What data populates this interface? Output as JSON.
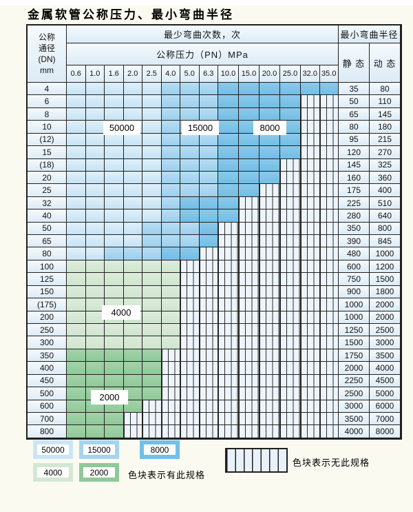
{
  "title": "金属软管公称压力、最小弯曲半径",
  "table": {
    "dn_header": [
      "公称",
      "通径",
      "(DN)",
      "mm"
    ],
    "bend_times_header": "最少弯曲次数，次",
    "pn_header": "公称压力（PN）MPa",
    "bend_radius_header": "最小弯曲半径",
    "static_header": "静 态",
    "dynamic_header": "动 态",
    "pn_columns": [
      "0.6",
      "1.0",
      "1.6",
      "2.0",
      "2.5",
      "4.0",
      "5.0",
      "6.3",
      "10.0",
      "15.0",
      "20.0",
      "25.0",
      "32.0",
      "35.0"
    ],
    "rows": [
      {
        "dn": "4",
        "static": "35",
        "dynamic": "80",
        "spec": {
          "type": "blue",
          "light": 4,
          "mid": 7,
          "end": 13
        }
      },
      {
        "dn": "6",
        "static": "50",
        "dynamic": "110",
        "spec": {
          "type": "blue",
          "light": 4,
          "mid": 7,
          "end": 11
        }
      },
      {
        "dn": "8",
        "static": "65",
        "dynamic": "145",
        "spec": {
          "type": "blue",
          "light": 4,
          "mid": 7,
          "end": 11
        }
      },
      {
        "dn": "10",
        "static": "80",
        "dynamic": "180",
        "spec": {
          "type": "blue",
          "light": 4,
          "mid": 7,
          "end": 11
        }
      },
      {
        "dn": "(12)",
        "static": "95",
        "dynamic": "215",
        "spec": {
          "type": "blue",
          "light": 4,
          "mid": 7,
          "end": 11
        }
      },
      {
        "dn": "15",
        "static": "120",
        "dynamic": "270",
        "spec": {
          "type": "blue",
          "light": 4,
          "mid": 7,
          "end": 11
        }
      },
      {
        "dn": "(18)",
        "static": "145",
        "dynamic": "325",
        "spec": {
          "type": "blue",
          "light": 4,
          "mid": 7,
          "end": 10
        }
      },
      {
        "dn": "20",
        "static": "160",
        "dynamic": "360",
        "spec": {
          "type": "blue",
          "light": 4,
          "mid": 7,
          "end": 10
        }
      },
      {
        "dn": "25",
        "static": "175",
        "dynamic": "400",
        "spec": {
          "type": "blue",
          "light": 4,
          "mid": 7,
          "end": 9
        }
      },
      {
        "dn": "32",
        "static": "225",
        "dynamic": "510",
        "spec": {
          "type": "blue",
          "light": 4,
          "mid": 5,
          "end": 8
        }
      },
      {
        "dn": "40",
        "static": "280",
        "dynamic": "640",
        "spec": {
          "type": "blue",
          "light": 4,
          "mid": 5,
          "end": 8
        }
      },
      {
        "dn": "50",
        "static": "350",
        "dynamic": "800",
        "spec": {
          "type": "blue",
          "light": 3,
          "mid": 6,
          "end": 7
        }
      },
      {
        "dn": "65",
        "static": "390",
        "dynamic": "845",
        "spec": {
          "type": "blue",
          "light": 3,
          "mid": 6,
          "end": 7
        }
      },
      {
        "dn": "80",
        "static": "480",
        "dynamic": "1000",
        "spec": {
          "type": "blue",
          "light": 1,
          "mid": 4,
          "end": 6
        }
      },
      {
        "dn": "100",
        "static": "600",
        "dynamic": "1200",
        "spec": {
          "type": "green4000",
          "end": 5
        }
      },
      {
        "dn": "125",
        "static": "750",
        "dynamic": "1500",
        "spec": {
          "type": "green4000",
          "end": 5
        }
      },
      {
        "dn": "150",
        "static": "900",
        "dynamic": "1800",
        "spec": {
          "type": "green4000",
          "end": 5
        }
      },
      {
        "dn": "(175)",
        "static": "1000",
        "dynamic": "2000",
        "spec": {
          "type": "green4000",
          "end": 5
        }
      },
      {
        "dn": "200",
        "static": "1000",
        "dynamic": "2000",
        "spec": {
          "type": "green4000",
          "end": 5
        }
      },
      {
        "dn": "250",
        "static": "1250",
        "dynamic": "2500",
        "spec": {
          "type": "green4000",
          "end": 5
        }
      },
      {
        "dn": "300",
        "static": "1500",
        "dynamic": "3000",
        "spec": {
          "type": "green4000",
          "end": 5
        }
      },
      {
        "dn": "350",
        "static": "1750",
        "dynamic": "3500",
        "spec": {
          "type": "green2000",
          "end": 4
        }
      },
      {
        "dn": "400",
        "static": "2000",
        "dynamic": "4000",
        "spec": {
          "type": "green2000",
          "end": 4
        }
      },
      {
        "dn": "450",
        "static": "2250",
        "dynamic": "4500",
        "spec": {
          "type": "green2000",
          "end": 4
        }
      },
      {
        "dn": "500",
        "static": "2500",
        "dynamic": "5000",
        "spec": {
          "type": "green2000",
          "end": 4
        }
      },
      {
        "dn": "600",
        "static": "3000",
        "dynamic": "6000",
        "spec": {
          "type": "green2000",
          "end": 3
        }
      },
      {
        "dn": "700",
        "static": "3500",
        "dynamic": "7000",
        "spec": {
          "type": "green2000",
          "end": 2
        }
      },
      {
        "dn": "800",
        "static": "4000",
        "dynamic": "8000",
        "spec": {
          "type": "green2000",
          "end": 2
        }
      }
    ]
  },
  "overlays": [
    {
      "text": "50000"
    },
    {
      "text": "15000"
    },
    {
      "text": "8000"
    },
    {
      "text": "4000"
    },
    {
      "text": "2000"
    }
  ],
  "legend": {
    "items": [
      {
        "value": "50000"
      },
      {
        "value": "15000"
      },
      {
        "value": "8000"
      },
      {
        "value": "4000"
      },
      {
        "value": "2000"
      }
    ],
    "has_spec_note": "色块表示有此规格",
    "no_spec_note": "色块表示无此规格"
  },
  "colors": {
    "cycles_50000": "#cbe5f6",
    "cycles_15000": "#a5d4ef",
    "cycles_8000": "#74bfe6",
    "cycles_4000": "#d3e7d2",
    "cycles_2000": "#8fc998",
    "no_spec_bg": "#eef4fb",
    "grid_line": "#1f1f1f"
  }
}
